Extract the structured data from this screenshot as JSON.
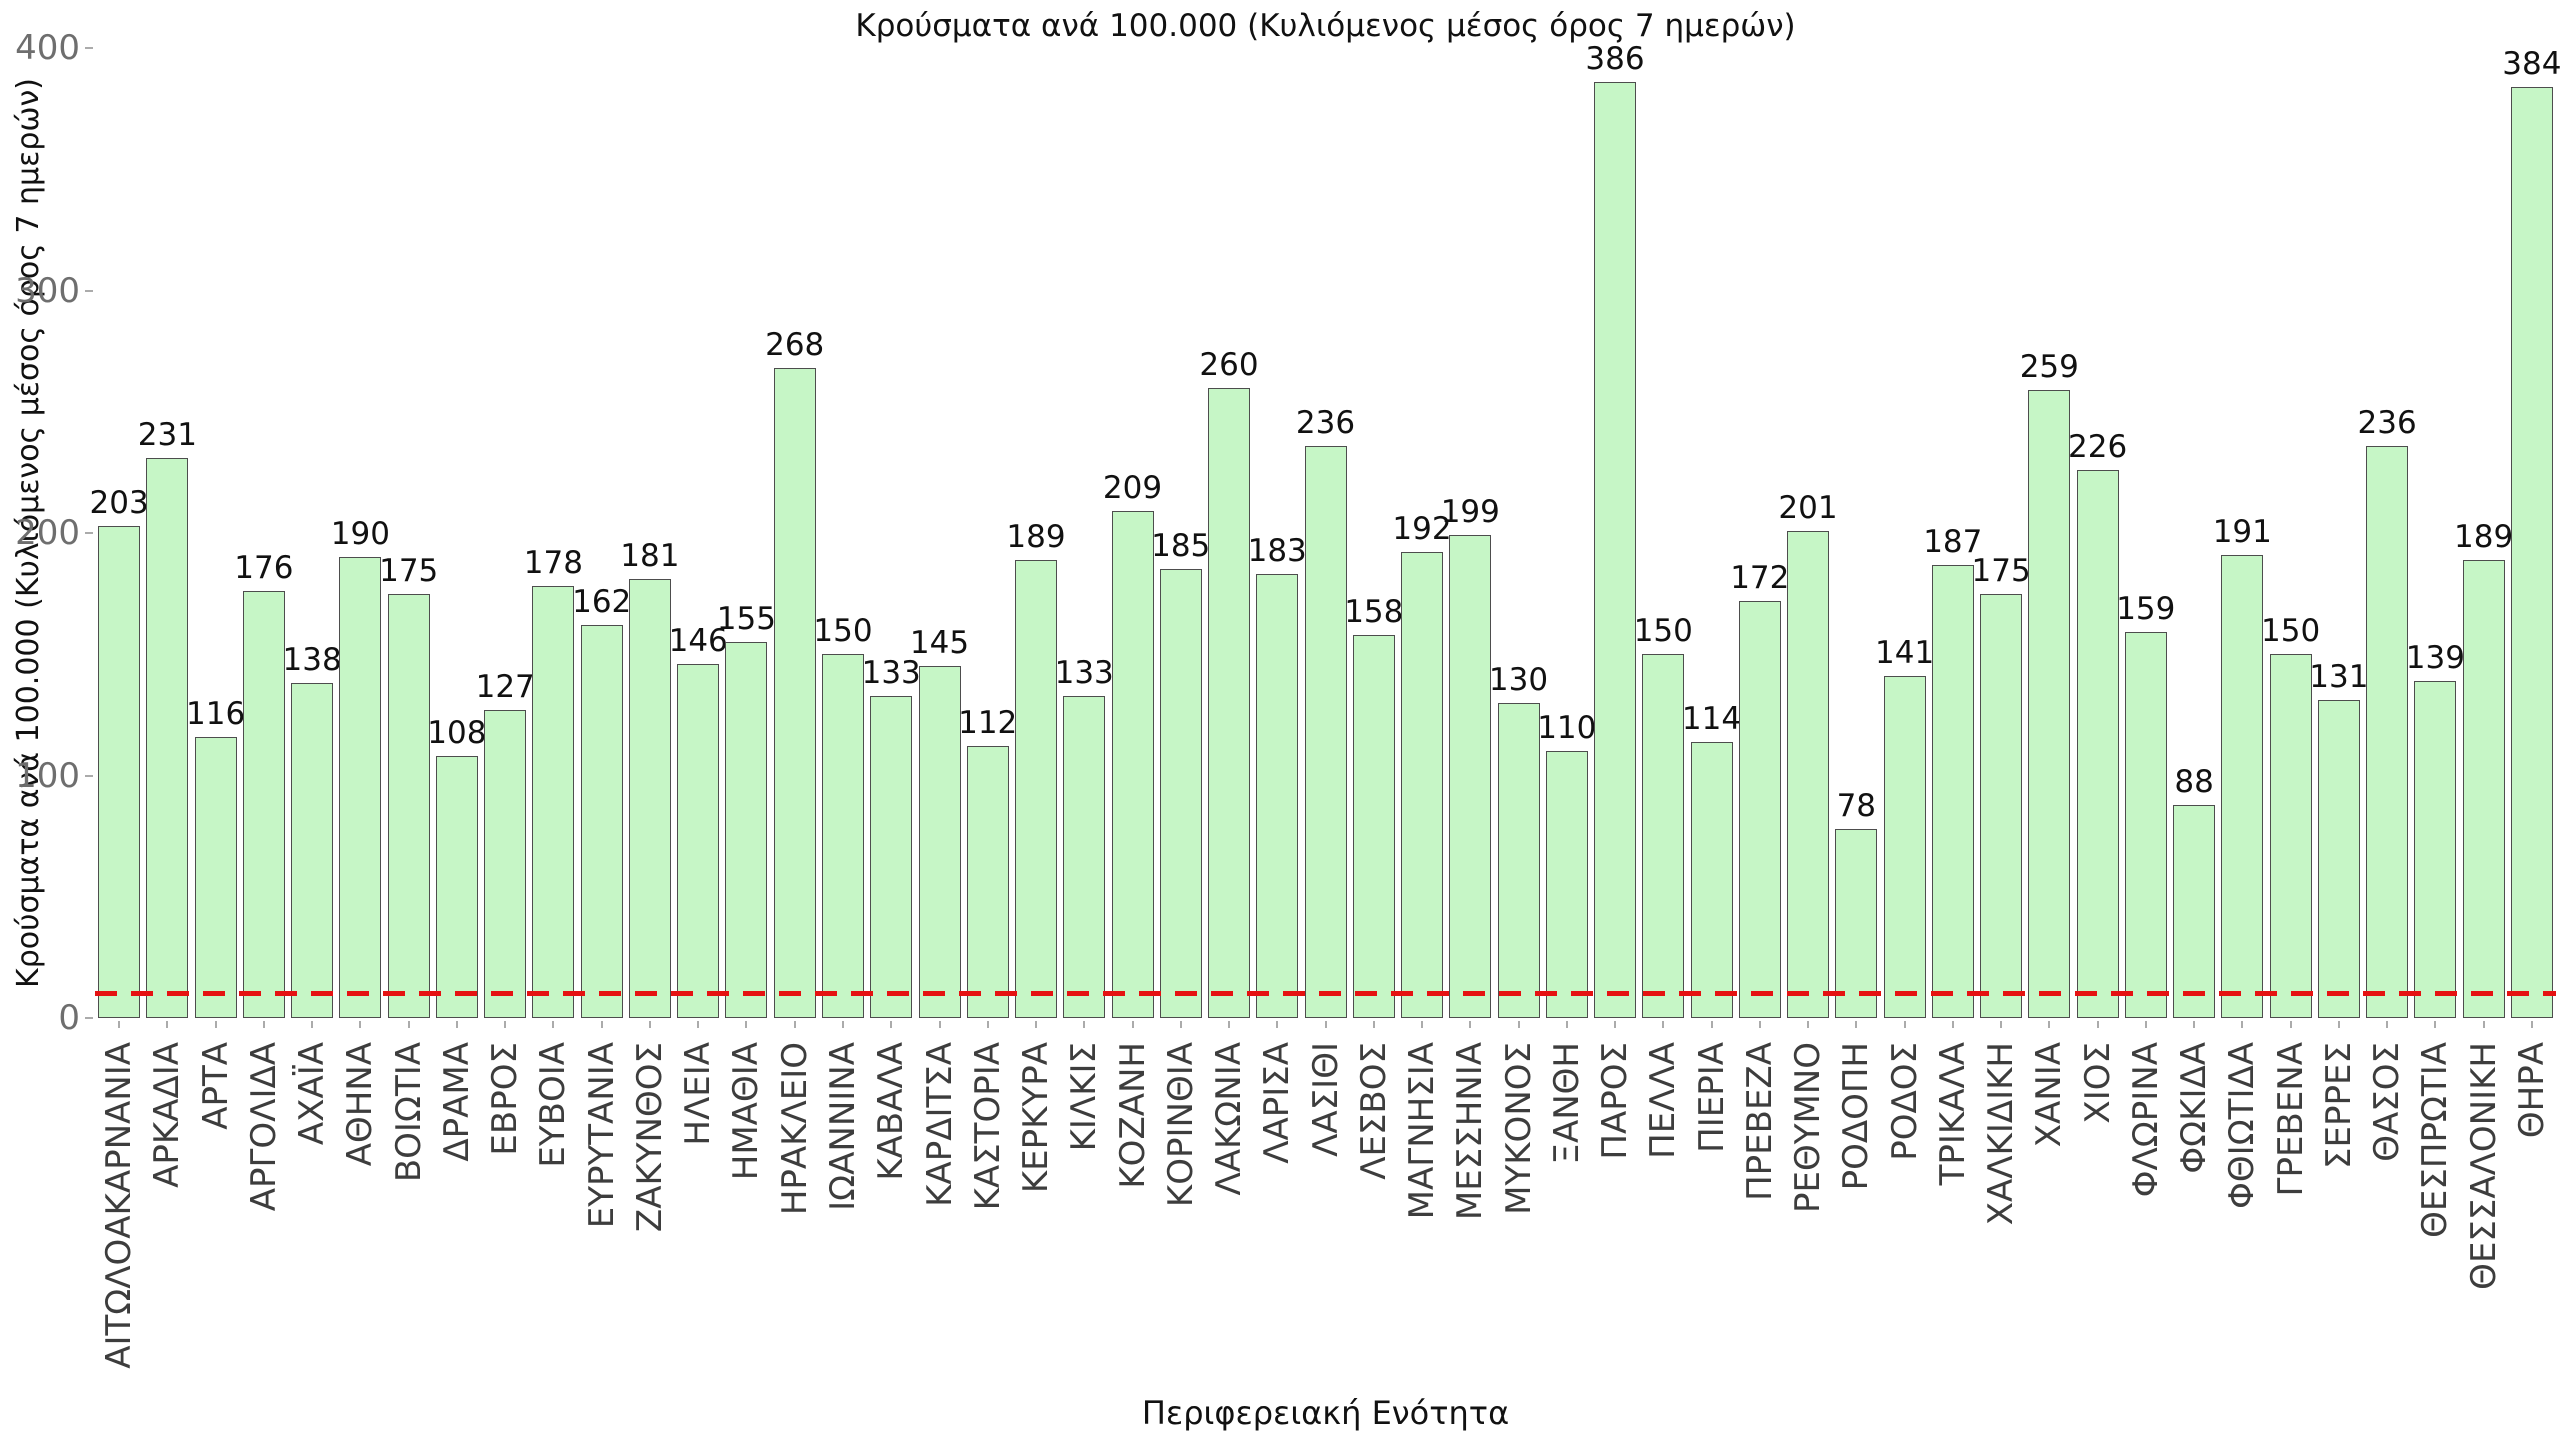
{
  "title": "Κρούσματα ανά 100.000 (Κυλιόμενος μέσος όρος 7 ημερών)",
  "chart_data": {
    "type": "bar",
    "title": "Κρούσματα ανά 100.000 (Κυλιόμενος μέσος όρος 7 ημερών)",
    "xlabel": "Περιφερειακή Ενότητα",
    "ylabel": "Κρούσματα ανά 100.000 (Κυλιόμενος μέσος όρος 7 ημερών)",
    "ylim": [
      0,
      400
    ],
    "yticks": [
      0,
      100,
      200,
      300,
      400
    ],
    "grid": false,
    "legend_position": "none",
    "bar_color": "#c6f6c6",
    "bar_edge_color": "#4d4d4d",
    "threshold_line": {
      "value": 10,
      "color": "#e51212",
      "style": "dashed"
    },
    "categories": [
      "ΑΙΤΩΛΟΑΚΑΡΝΑΝΙΑ",
      "ΑΡΚΑΔΙΑ",
      "ΑΡΤΑ",
      "ΑΡΓΟΛΙΔΑ",
      "ΑΧΑΪΑ",
      "ΑΘΗΝΑ",
      "ΒΟΙΩΤΙΑ",
      "ΔΡΑΜΑ",
      "ΕΒΡΟΣ",
      "ΕΥΒΟΙΑ",
      "ΕΥΡΥΤΑΝΙΑ",
      "ΖΑΚΥΝΘΟΣ",
      "ΗΛΕΙΑ",
      "ΗΜΑΘΙΑ",
      "ΗΡΑΚΛΕΙΟ",
      "ΙΩΑΝΝΙΝΑ",
      "ΚΑΒΑΛΑ",
      "ΚΑΡΔΙΤΣΑ",
      "ΚΑΣΤΟΡΙΑ",
      "ΚΕΡΚΥΡΑ",
      "ΚΙΛΚΙΣ",
      "ΚΟΖΑΝΗ",
      "ΚΟΡΙΝΘΙΑ",
      "ΛΑΚΩΝΙΑ",
      "ΛΑΡΙΣΑ",
      "ΛΑΣΙΘΙ",
      "ΛΕΣΒΟΣ",
      "ΜΑΓΝΗΣΙΑ",
      "ΜΕΣΣΗΝΙΑ",
      "ΜΥΚΟΝΟΣ",
      "ΞΑΝΘΗ",
      "ΠΑΡΟΣ",
      "ΠΕΛΛΑ",
      "ΠΙΕΡΙΑ",
      "ΠΡΕΒΕΖΑ",
      "ΡΕΘΥΜΝΟ",
      "ΡΟΔΟΠΗ",
      "ΡΟΔΟΣ",
      "ΤΡΙΚΑΛΑ",
      "ΧΑΛΚΙΔΙΚΗ",
      "ΧΑΝΙΑ",
      "ΧΙΟΣ",
      "ΦΛΩΡΙΝΑ",
      "ΦΩΚΙΔΑ",
      "ΦΘΙΩΤΙΔΑ",
      "ΓΡΕΒΕΝΑ",
      "ΣΕΡΡΕΣ",
      "ΘΑΣΟΣ",
      "ΘΕΣΠΡΩΤΙΑ",
      "ΘΕΣΣΑΛΟΝΙΚΗ",
      "ΘΗΡΑ"
    ],
    "values": [
      203,
      231,
      116,
      176,
      138,
      190,
      175,
      108,
      127,
      178,
      162,
      181,
      146,
      155,
      268,
      150,
      133,
      145,
      112,
      189,
      133,
      209,
      185,
      260,
      183,
      236,
      158,
      192,
      199,
      130,
      110,
      386,
      150,
      114,
      172,
      201,
      78,
      141,
      187,
      175,
      259,
      226,
      159,
      88,
      191,
      150,
      131,
      236,
      139,
      189,
      384
    ]
  }
}
